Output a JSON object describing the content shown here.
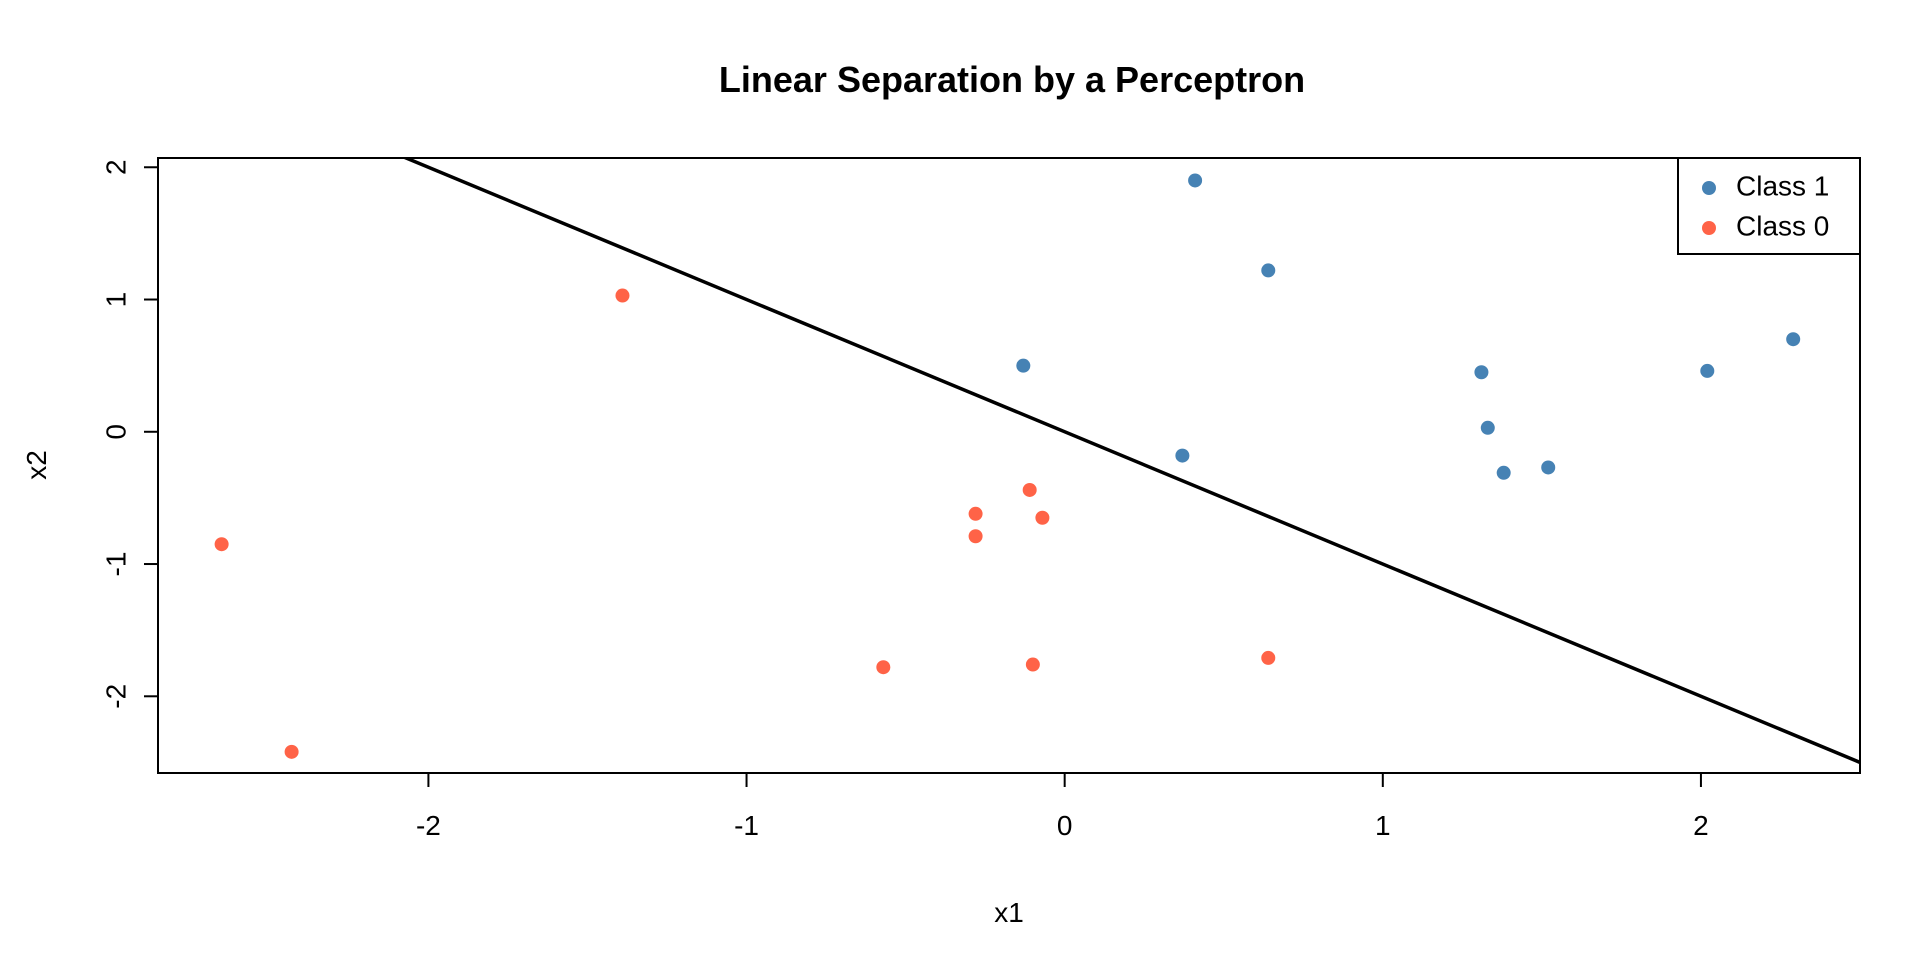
{
  "chart_data": {
    "type": "scatter",
    "title": "Linear Separation by a Perceptron",
    "xlabel": "x1",
    "ylabel": "x2",
    "xlim": [
      -2.85,
      2.5
    ],
    "ylim": [
      -2.58,
      2.07
    ],
    "x_ticks": [
      -2,
      -1,
      0,
      1,
      2
    ],
    "y_ticks": [
      -2,
      -1,
      0,
      1,
      2
    ],
    "grid": false,
    "legend_position": "top-right",
    "series": [
      {
        "name": "Class 1",
        "color": "#4682B4",
        "points": [
          {
            "x": 0.41,
            "y": 1.9
          },
          {
            "x": 0.64,
            "y": 1.22
          },
          {
            "x": -0.13,
            "y": 0.5
          },
          {
            "x": 0.37,
            "y": -0.18
          },
          {
            "x": 1.31,
            "y": 0.45
          },
          {
            "x": 1.33,
            "y": 0.03
          },
          {
            "x": 1.38,
            "y": -0.31
          },
          {
            "x": 1.52,
            "y": -0.27
          },
          {
            "x": 2.02,
            "y": 0.46
          },
          {
            "x": 2.29,
            "y": 0.7
          }
        ]
      },
      {
        "name": "Class 0",
        "color": "#FF6347",
        "points": [
          {
            "x": -1.39,
            "y": 1.03
          },
          {
            "x": -2.65,
            "y": -0.85
          },
          {
            "x": -2.43,
            "y": -2.42
          },
          {
            "x": -0.57,
            "y": -1.78
          },
          {
            "x": -0.28,
            "y": -0.62
          },
          {
            "x": -0.28,
            "y": -0.79
          },
          {
            "x": -0.11,
            "y": -0.44
          },
          {
            "x": -0.07,
            "y": -0.65
          },
          {
            "x": -0.1,
            "y": -1.76
          },
          {
            "x": 0.64,
            "y": -1.71
          }
        ]
      }
    ],
    "decision_boundary": {
      "color": "#000000",
      "slope": -1.0,
      "intercept": 0.0
    }
  }
}
